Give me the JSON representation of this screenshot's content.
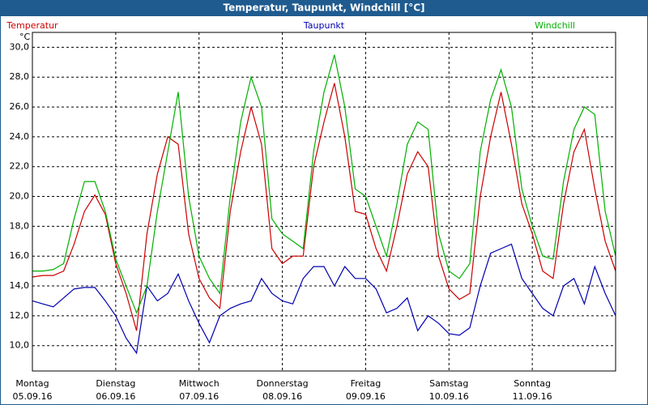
{
  "chart_data": {
    "type": "line",
    "title": "Temperatur, Taupunkt, Windchill [°C]",
    "y_unit": "°C",
    "legend": "top",
    "grid": true,
    "xlim": [
      0,
      7
    ],
    "xticks": [
      {
        "value": 0,
        "label": "Montag",
        "date": "05.09.16"
      },
      {
        "value": 1,
        "label": "Dienstag",
        "date": "06.09.16"
      },
      {
        "value": 2,
        "label": "Mittwoch",
        "date": "07.09.16"
      },
      {
        "value": 3,
        "label": "Donnerstag",
        "date": "08.09.16"
      },
      {
        "value": 4,
        "label": "Freitag",
        "date": "09.09.16"
      },
      {
        "value": 5,
        "label": "Samstag",
        "date": "10.09.16"
      },
      {
        "value": 6,
        "label": "Sonntag",
        "date": "11.09.16"
      }
    ],
    "ylim": [
      8.3,
      31.0
    ],
    "yticks": [
      {
        "value": 10,
        "label": "10,0"
      },
      {
        "value": 12,
        "label": "12,0"
      },
      {
        "value": 14,
        "label": "14,0"
      },
      {
        "value": 16,
        "label": "16,0"
      },
      {
        "value": 18,
        "label": "18,0"
      },
      {
        "value": 20,
        "label": "20,0"
      },
      {
        "value": 22,
        "label": "22,0"
      },
      {
        "value": 24,
        "label": "24,0"
      },
      {
        "value": 26,
        "label": "26,0"
      },
      {
        "value": 28,
        "label": "28,0"
      },
      {
        "value": 30,
        "label": "30,0"
      }
    ],
    "x": [
      0,
      0.125,
      0.25,
      0.375,
      0.5,
      0.625,
      0.75,
      0.875,
      1,
      1.125,
      1.25,
      1.375,
      1.5,
      1.625,
      1.75,
      1.875,
      2,
      2.125,
      2.25,
      2.375,
      2.5,
      2.625,
      2.75,
      2.875,
      3,
      3.125,
      3.25,
      3.375,
      3.5,
      3.625,
      3.75,
      3.875,
      4,
      4.125,
      4.25,
      4.375,
      4.5,
      4.625,
      4.75,
      4.875,
      5,
      5.125,
      5.25,
      5.375,
      5.5,
      5.625,
      5.75,
      5.875,
      6,
      6.125,
      6.25,
      6.375,
      6.5,
      6.625,
      6.75,
      6.875,
      7
    ],
    "series": [
      {
        "name": "Temperatur",
        "color": "#cc0000",
        "values": [
          14.6,
          14.7,
          14.7,
          15.0,
          16.8,
          19.0,
          20.1,
          18.8,
          15.5,
          13.5,
          11.0,
          17.5,
          21.5,
          24.0,
          23.5,
          17.5,
          14.5,
          13.2,
          12.5,
          19.0,
          23.0,
          26.0,
          23.5,
          16.5,
          15.5,
          16.0,
          16.0,
          22.0,
          25.0,
          27.6,
          24.0,
          19.0,
          18.8,
          16.5,
          15.0,
          18.0,
          21.5,
          23.0,
          22.0,
          16.0,
          13.8,
          13.1,
          13.5,
          20.0,
          24.0,
          27.0,
          23.5,
          19.5,
          17.5,
          15.0,
          14.5,
          19.5,
          23.0,
          24.5,
          20.5,
          17.0,
          15.0
        ]
      },
      {
        "name": "Taupunkt",
        "color": "#0000b0",
        "values": [
          13.0,
          12.8,
          12.6,
          13.2,
          13.8,
          13.9,
          13.9,
          13.0,
          12.0,
          10.5,
          9.5,
          14.0,
          13.0,
          13.5,
          14.8,
          13.0,
          11.5,
          10.2,
          12.0,
          12.5,
          12.8,
          13.0,
          14.5,
          13.5,
          13.0,
          12.8,
          14.5,
          15.3,
          15.3,
          14.0,
          15.3,
          14.5,
          14.5,
          13.8,
          12.2,
          12.5,
          13.2,
          11.0,
          12.0,
          11.5,
          10.8,
          10.7,
          11.2,
          14.0,
          16.2,
          16.5,
          16.8,
          14.5,
          13.5,
          12.5,
          12.0,
          14.0,
          14.5,
          12.8,
          15.3,
          13.5,
          12.0
        ]
      },
      {
        "name": "Windchill",
        "color": "#00b000",
        "values": [
          15.0,
          15.0,
          15.1,
          15.5,
          18.5,
          21.0,
          21.0,
          19.0,
          15.8,
          14.0,
          12.2,
          14.0,
          19.0,
          23.0,
          27.0,
          20.0,
          16.0,
          14.5,
          13.5,
          20.0,
          25.0,
          28.0,
          26.0,
          18.5,
          17.5,
          17.0,
          16.5,
          23.0,
          27.0,
          29.5,
          26.0,
          20.5,
          20.0,
          18.0,
          16.0,
          19.5,
          23.5,
          25.0,
          24.5,
          17.5,
          15.0,
          14.5,
          15.5,
          23.0,
          26.5,
          28.5,
          26.0,
          20.5,
          18.0,
          16.0,
          15.8,
          21.0,
          24.5,
          26.0,
          25.5,
          19.0,
          16.0
        ]
      }
    ]
  }
}
